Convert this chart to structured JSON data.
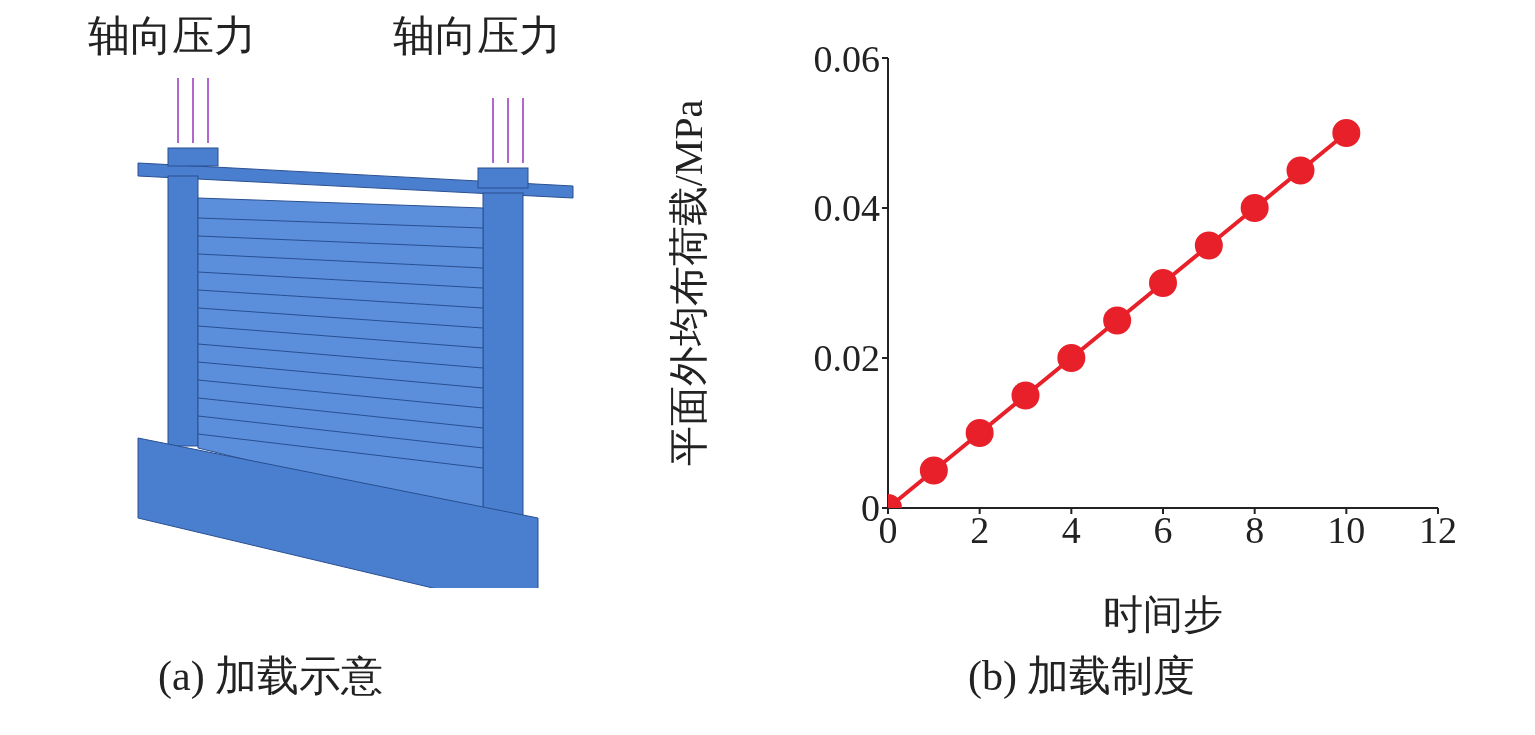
{
  "chart_data": {
    "type": "line",
    "xlabel": "时间步",
    "ylabel": "平面外均布荷载/MPa",
    "x": [
      0,
      1,
      2,
      3,
      4,
      5,
      6,
      7,
      8,
      9,
      10
    ],
    "series": [
      {
        "color": "#e8202a",
        "values": [
          0,
          0.005,
          0.01,
          0.015,
          0.02,
          0.025,
          0.03,
          0.035,
          0.04,
          0.045,
          0.05
        ]
      }
    ],
    "xlim": [
      0,
      12
    ],
    "xticks": [
      0,
      2,
      4,
      6,
      8,
      10,
      12
    ],
    "ylim": [
      0,
      0.06
    ],
    "yticks": [
      0,
      0.02,
      0.04,
      0.06
    ],
    "marker": "circle",
    "line_style": "solid",
    "annotations": [
      "轴向压力",
      "轴向压力",
      "(a) 加载示意",
      "(b) 加载制度"
    ]
  }
}
